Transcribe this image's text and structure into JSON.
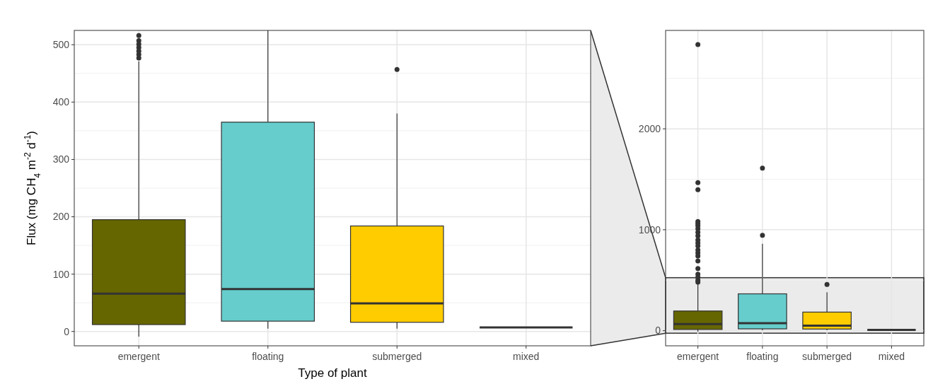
{
  "chart_data": [
    {
      "type": "box",
      "xlabel": "Type of plant",
      "ylabel": "Flux (mg CH$_{4}$ m$^{-2}$ d$^{-1}$)",
      "categories": [
        "emergent",
        "floating",
        "submerged",
        "mixed"
      ],
      "colors": [
        "#666600",
        "#66cdcc",
        "#ffcc00",
        "#333333"
      ],
      "boxes": [
        {
          "low": -9,
          "q1": 12,
          "median": 66,
          "q3": 195,
          "high": 471,
          "outliers": [
            477,
            483,
            489,
            495,
            501,
            507,
            516
          ]
        },
        {
          "low": 5,
          "q1": 18,
          "median": 74,
          "q3": 365,
          "high": 860
        },
        {
          "low": 5,
          "q1": 16,
          "median": 49,
          "q3": 184,
          "high": 380,
          "outliers": [
            457
          ]
        },
        {
          "low": 7,
          "q1": 7,
          "median": 7,
          "q3": 7,
          "high": 7
        }
      ],
      "ylim": [
        -25,
        525
      ],
      "yticks": [
        0,
        100,
        200,
        300,
        400,
        500
      ],
      "grid": true
    },
    {
      "type": "box",
      "categories": [
        "emergent",
        "floating",
        "submerged",
        "mixed"
      ],
      "colors": [
        "#666600",
        "#66cdcc",
        "#ffcc00",
        "#333333"
      ],
      "boxes": [
        {
          "low": -9,
          "q1": 12,
          "median": 66,
          "q3": 195,
          "high": 471,
          "outliers": [
            480,
            500,
            530,
            560,
            615,
            690,
            740,
            770,
            800,
            840,
            870,
            900,
            940,
            975,
            1010,
            1040,
            1060,
            1082,
            1397,
            1467,
            2834
          ]
        },
        {
          "low": 5,
          "q1": 18,
          "median": 74,
          "q3": 365,
          "high": 860,
          "outliers": [
            944,
            1610
          ]
        },
        {
          "low": 5,
          "q1": 16,
          "median": 49,
          "q3": 184,
          "high": 380,
          "outliers": [
            457
          ]
        },
        {
          "low": 7,
          "q1": 7,
          "median": 7,
          "q3": 7,
          "high": 7
        }
      ],
      "ylim": [
        -150,
        2975
      ],
      "yticks": [
        0,
        1000,
        2000
      ],
      "grid": true,
      "bands": [
        {
          "axis": "y",
          "from": -25,
          "to": 525,
          "color": "#ebebeb"
        }
      ]
    }
  ]
}
